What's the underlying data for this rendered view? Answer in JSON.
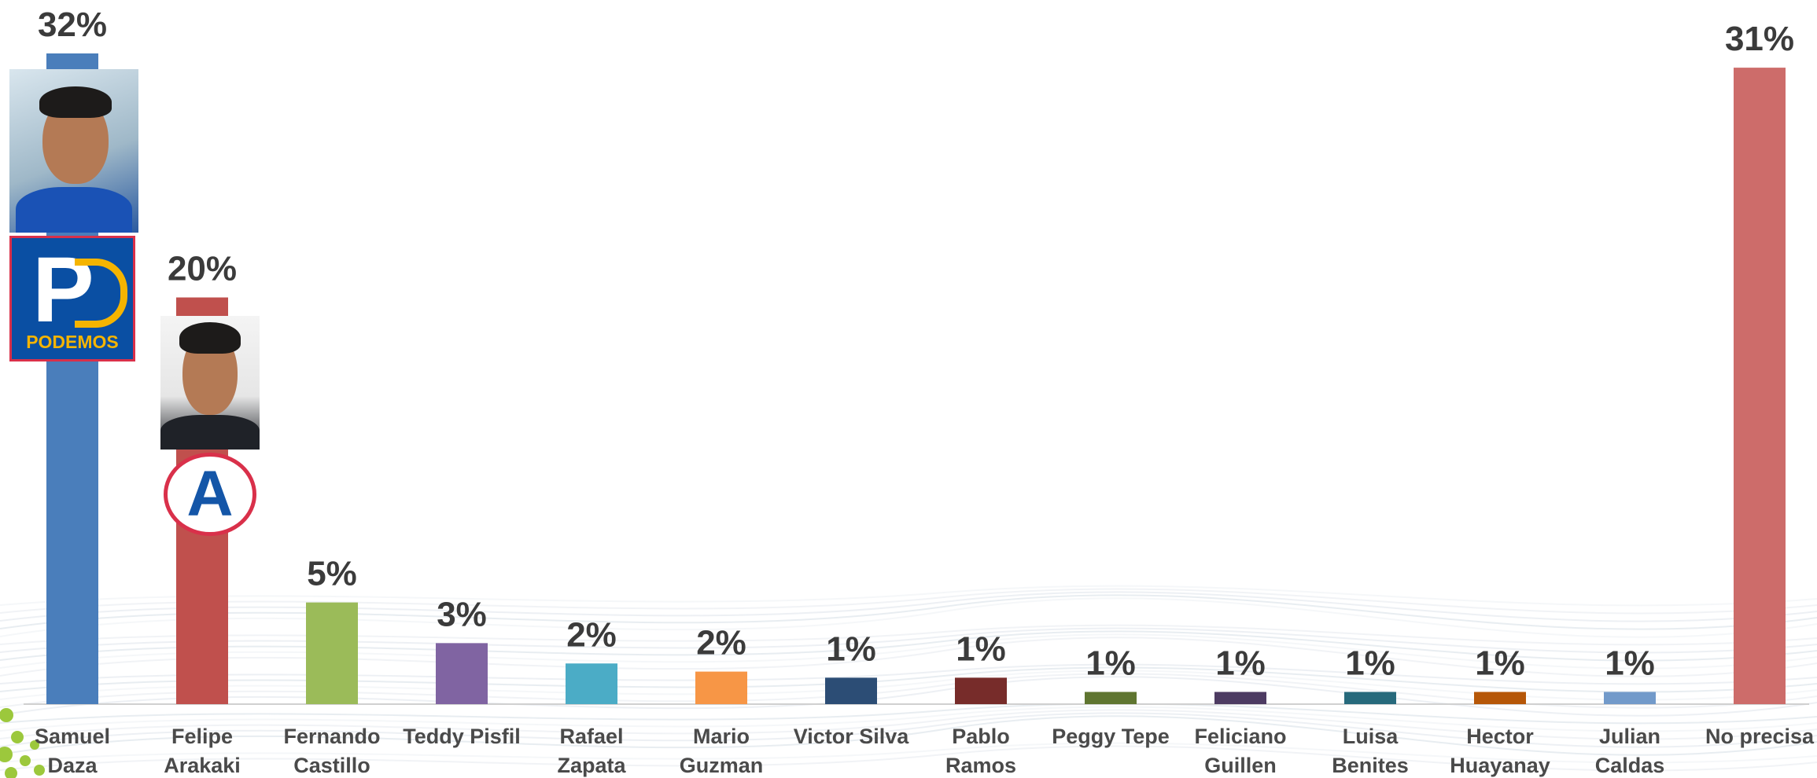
{
  "chart_data": {
    "type": "bar",
    "categories": [
      [
        "Samuel",
        "Daza"
      ],
      [
        "Felipe",
        "Arakaki"
      ],
      [
        "Fernando",
        "Castillo"
      ],
      [
        "Teddy Pisfil"
      ],
      [
        "Rafael",
        "Zapata"
      ],
      [
        "Mario",
        "Guzman"
      ],
      [
        "Victor Silva"
      ],
      [
        "Pablo",
        "Ramos"
      ],
      [
        "Peggy Tepe"
      ],
      [
        "Feliciano",
        "Guillen"
      ],
      [
        "Luisa",
        "Benites"
      ],
      [
        "Hector",
        "Huayanay"
      ],
      [
        "Julian",
        "Caldas"
      ],
      [
        "No precisa"
      ]
    ],
    "values": [
      32,
      20,
      5,
      3,
      2,
      2,
      1,
      1,
      1,
      1,
      1,
      1,
      1,
      31
    ],
    "bar_heights_pct": [
      32,
      20,
      5,
      3,
      2,
      1.6,
      1.3,
      1.3,
      0.6,
      0.6,
      0.6,
      0.6,
      0.6,
      31.3
    ],
    "value_labels": [
      "32%",
      "20%",
      "5%",
      "3%",
      "2%",
      "2%",
      "1%",
      "1%",
      "1%",
      "1%",
      "1%",
      "1%",
      "1%",
      "31%"
    ],
    "colors": [
      "#4a7ebb",
      "#c0504d",
      "#9bbb59",
      "#8064a2",
      "#4bacc6",
      "#f79646",
      "#2c4d75",
      "#772c2a",
      "#5f7530",
      "#4d3b62",
      "#276a7c",
      "#b65708",
      "#729aca",
      "#cd6c6a"
    ],
    "ylim": [
      0,
      32
    ],
    "title": "",
    "xlabel": "",
    "ylabel": "",
    "grid": false,
    "legend": "none"
  },
  "logos": {
    "podemos_text": "PODEMOS",
    "ap_letter": "A"
  }
}
